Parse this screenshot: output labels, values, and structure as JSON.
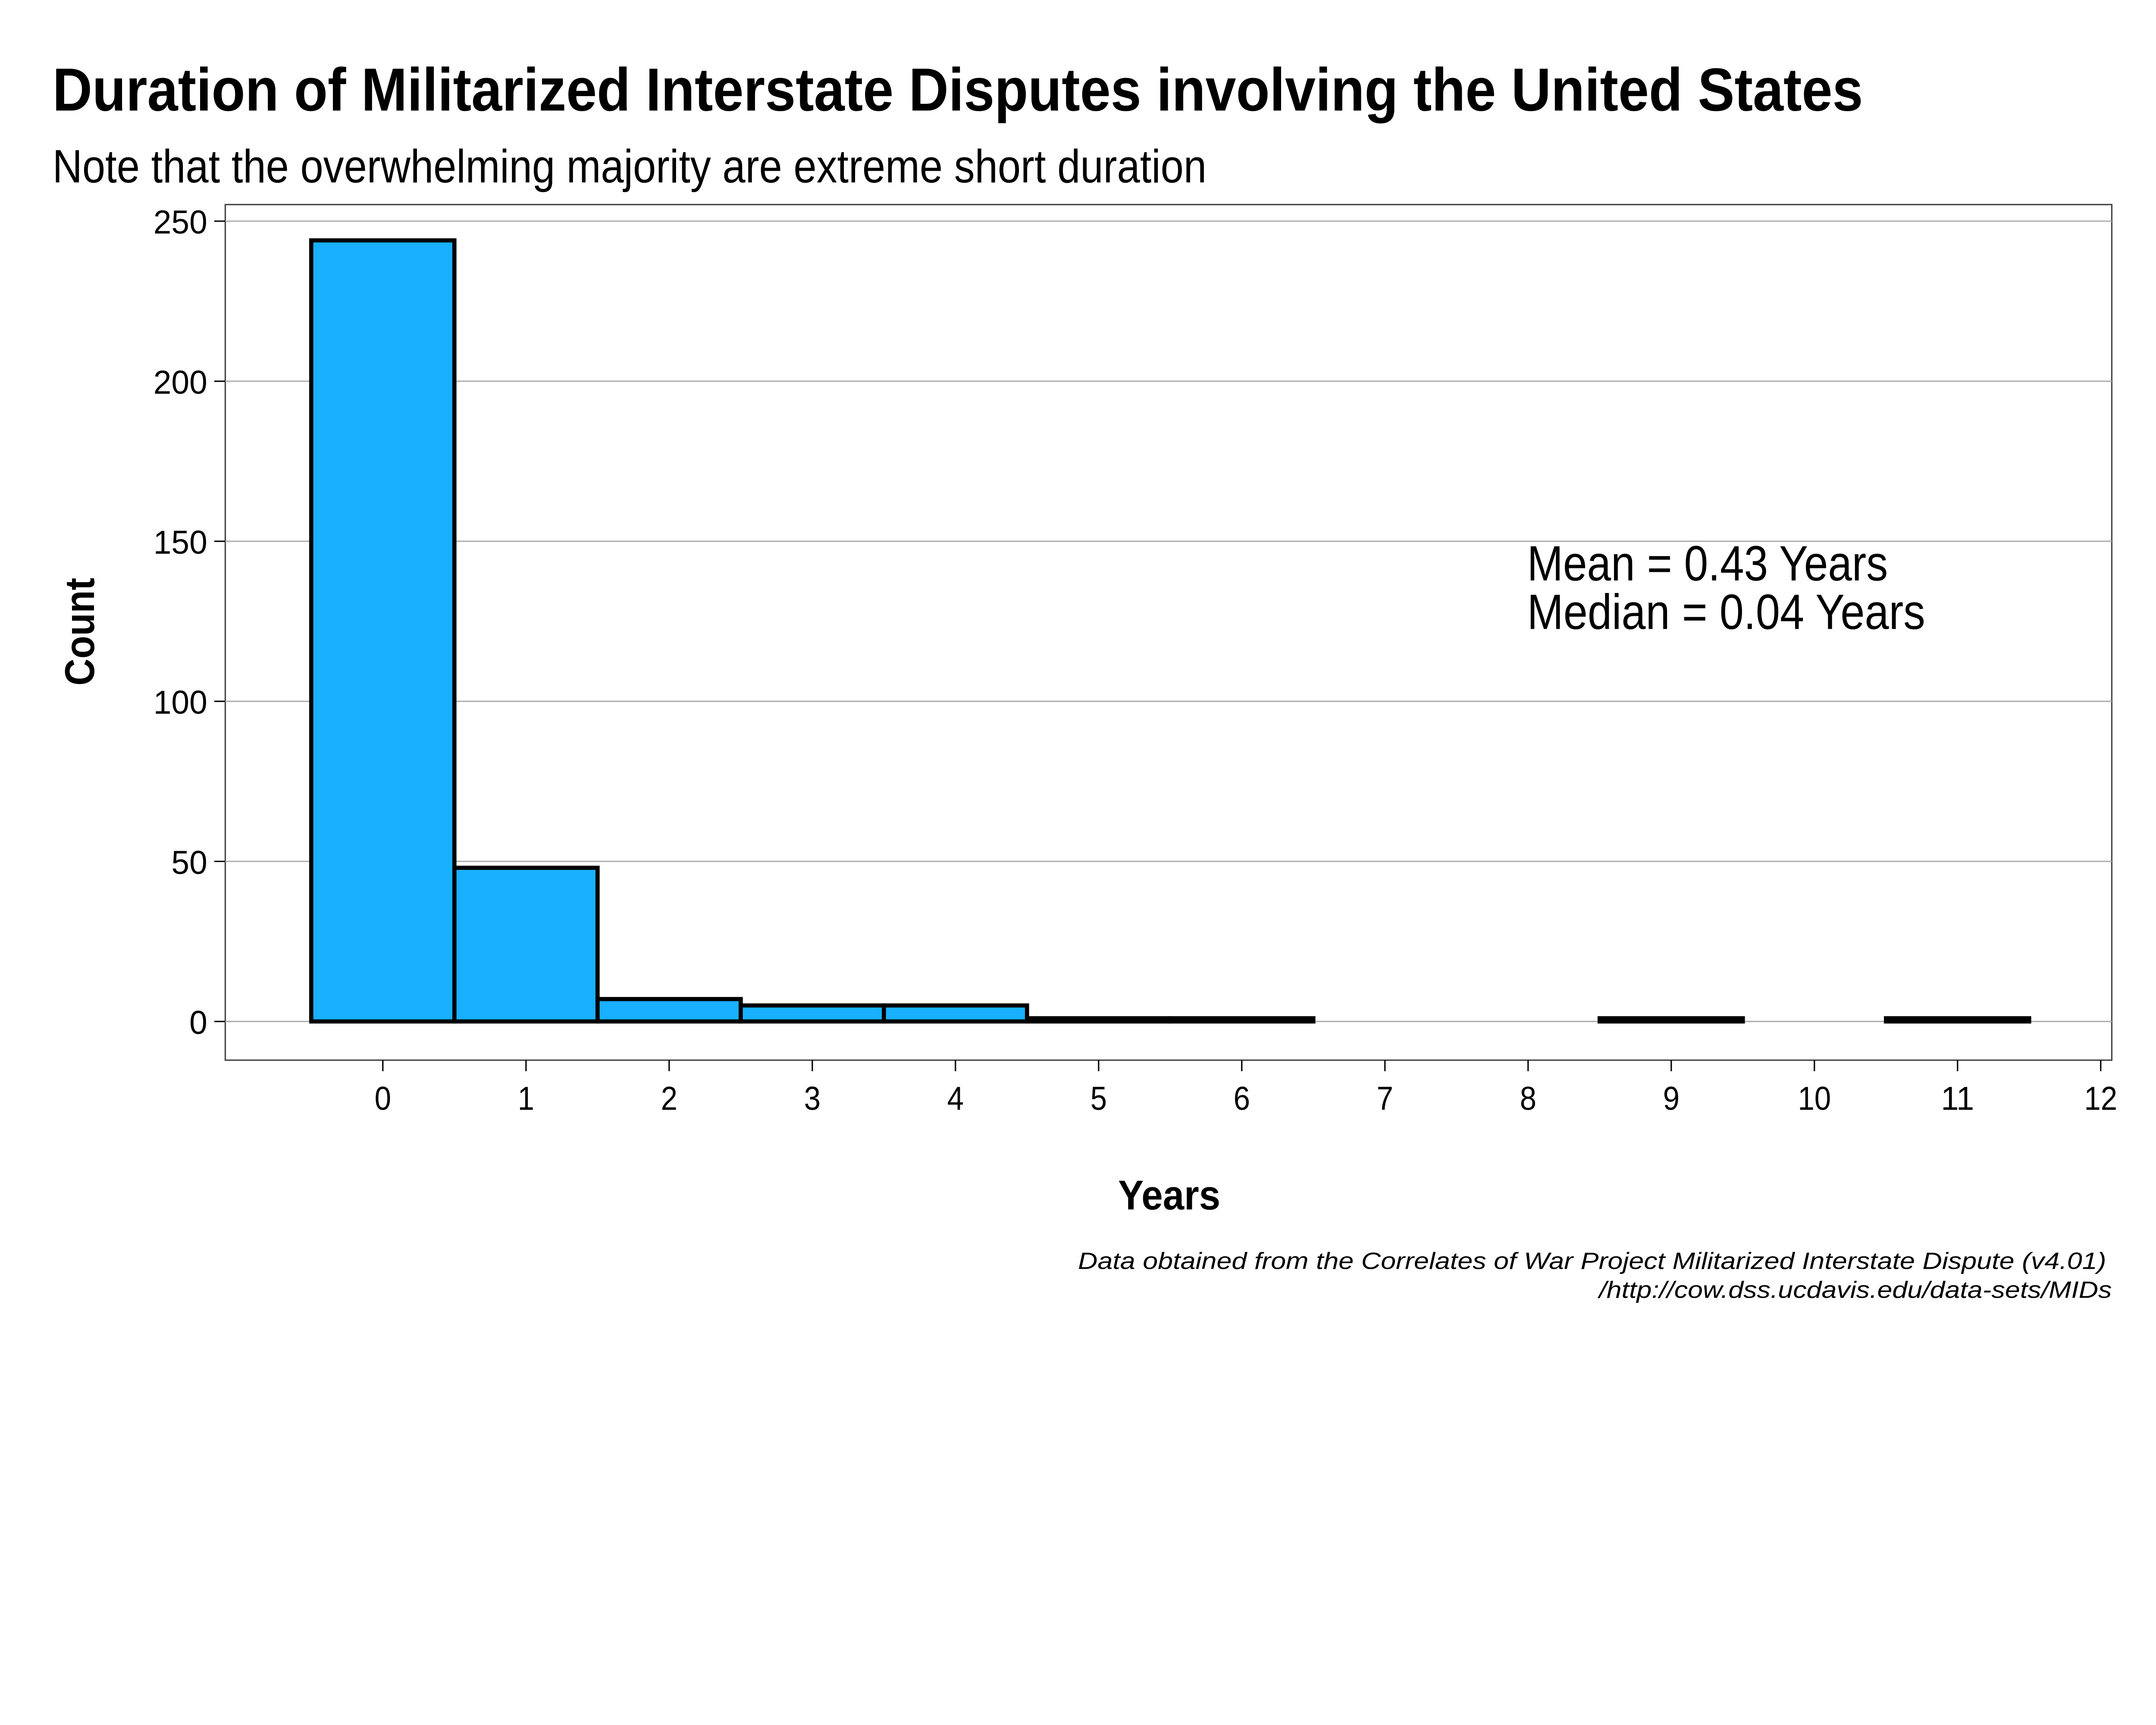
{
  "chart_data": {
    "type": "bar",
    "title": "Duration of Militarized Interstate Disputes involving the United States",
    "subtitle": "Note that the overwhelming majority are extreme short duration",
    "xlabel": "Years",
    "ylabel": "Count",
    "x": [
      0,
      1,
      2,
      3,
      4,
      5,
      6,
      7,
      8,
      9,
      10,
      11
    ],
    "values": [
      244,
      48,
      7,
      5,
      5,
      1,
      1,
      0,
      0,
      1,
      0,
      1
    ],
    "bin_width": 1,
    "xlim": [
      -1.1,
      12
    ],
    "ylim": [
      -12,
      255
    ],
    "x_ticks": [
      "0",
      "1",
      "2",
      "3",
      "4",
      "5",
      "6",
      "7",
      "8",
      "9",
      "10",
      "11",
      "12"
    ],
    "y_ticks": [
      "0",
      "50",
      "100",
      "150",
      "200",
      "250"
    ],
    "grid": "horizontal",
    "bar_fill": "#18B0FF",
    "bar_outline": "#000000",
    "annotations": [
      "Mean = 0.43 Years",
      "Median = 0.04 Years"
    ],
    "caption": [
      "Data obtained from the Correlates of War Project Militarized Interstate Dispute (v4.01)",
      "/http://cow.dss.ucdavis.edu/data-sets/MIDs"
    ]
  }
}
